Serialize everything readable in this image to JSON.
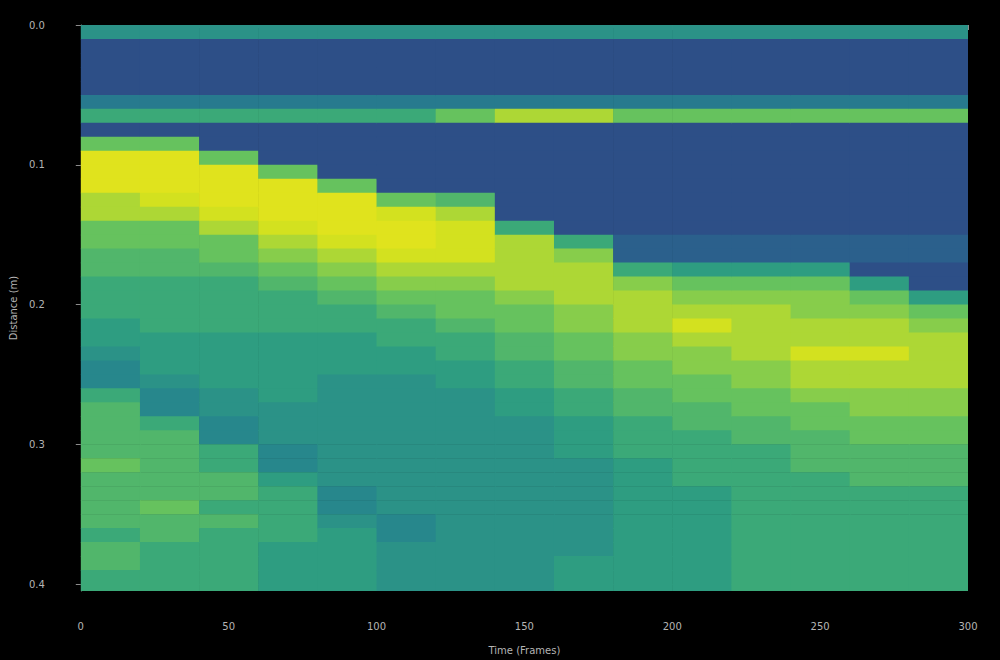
{
  "chart_data": {
    "type": "heatmap",
    "x_label": "Time (Frames)",
    "y_label": "Distance (m)",
    "xlim": [
      0,
      300
    ],
    "xticks": [
      0,
      50,
      100,
      150,
      200,
      250,
      300
    ],
    "ylim": [
      0,
      0.405
    ],
    "yticks": [
      {
        "value": 0,
        "label": "0.0"
      },
      0.1,
      0.2,
      0.3,
      0.4
    ],
    "grid": false,
    "zlim": [
      0,
      10
    ],
    "x_bins": [
      0,
      20,
      40,
      60,
      80,
      100,
      120,
      140,
      160,
      180,
      200,
      220,
      240,
      260,
      280,
      300
    ],
    "y_bins": [
      0,
      0.01,
      0.02,
      0.03,
      0.04,
      0.05,
      0.06,
      0.07,
      0.08,
      0.09,
      0.1,
      0.11,
      0.12,
      0.13,
      0.14,
      0.15,
      0.16,
      0.17,
      0.18,
      0.19,
      0.2,
      0.21,
      0.22,
      0.23,
      0.24,
      0.25,
      0.26,
      0.27,
      0.28,
      0.29,
      0.3,
      0.31,
      0.32,
      0.33,
      0.34,
      0.35,
      0.36,
      0.37,
      0.38,
      0.39,
      0.4,
      0.405
    ],
    "cells": [
      [
        5,
        2,
        2,
        2,
        2,
        4,
        6,
        2,
        7,
        9,
        9,
        9,
        8,
        8,
        7,
        7,
        6.5,
        6.5,
        6,
        6,
        6,
        5.5,
        5.5,
        5,
        4.5,
        4.5,
        6,
        6.5,
        6.5,
        6.5,
        6.5,
        7,
        6.5,
        6.5,
        6.5,
        6.5,
        6,
        6.5,
        6.5,
        6,
        6
      ],
      [
        5,
        2,
        2,
        2,
        2,
        4,
        6,
        2,
        7,
        9,
        9,
        9,
        8.5,
        8,
        7,
        7,
        6.5,
        6.5,
        6,
        6,
        6,
        6,
        5.5,
        5.5,
        5.5,
        5,
        4.5,
        4.5,
        6,
        6.5,
        6.5,
        6.5,
        6.5,
        6.5,
        7,
        6.5,
        6.5,
        6,
        6,
        6,
        6
      ],
      [
        5,
        2,
        2,
        2,
        2,
        4,
        6,
        2,
        2,
        7,
        9,
        9,
        9,
        8.5,
        8,
        7,
        7,
        6.5,
        6,
        6,
        6,
        6,
        5.5,
        5.5,
        5.5,
        5.5,
        5,
        5,
        4.5,
        4.5,
        6,
        6,
        6.5,
        6.5,
        6,
        6.5,
        6,
        6,
        6,
        6,
        6
      ],
      [
        5,
        2,
        2,
        2,
        2,
        4,
        6,
        2,
        2,
        2,
        7,
        9,
        9,
        9,
        8.5,
        8,
        7.5,
        7,
        6.5,
        6,
        6,
        6,
        5.5,
        5.5,
        5.5,
        5.5,
        5.5,
        5,
        5,
        5,
        4.5,
        4.5,
        5.5,
        6,
        6,
        6,
        6,
        5.5,
        5.5,
        5.5,
        5.5
      ],
      [
        5,
        2,
        2,
        2,
        2,
        4,
        6,
        2,
        2,
        2,
        2,
        7,
        9,
        9,
        9,
        8.5,
        8,
        7.5,
        7,
        6.5,
        6,
        6,
        5.5,
        5.5,
        5.5,
        5,
        5,
        5,
        5,
        5,
        5,
        5,
        5,
        4.5,
        4.5,
        5,
        5.5,
        5.5,
        5.5,
        5.5,
        5.5
      ],
      [
        5,
        2,
        2,
        2,
        2,
        4,
        6,
        2,
        2,
        2,
        2,
        2,
        7,
        8.5,
        9,
        9,
        8.5,
        8,
        7.5,
        7,
        6.5,
        6,
        6,
        5.5,
        5.5,
        5,
        5,
        5,
        5,
        5,
        5,
        5,
        5,
        5,
        5,
        4.5,
        4.5,
        5,
        5,
        5,
        5
      ],
      [
        5,
        2,
        2,
        2,
        2,
        4,
        7,
        2,
        2,
        2,
        2,
        2,
        6.5,
        8,
        8.5,
        8.5,
        8.5,
        8,
        7.5,
        7,
        7,
        6.5,
        6,
        6,
        5.5,
        5.5,
        5,
        5,
        5,
        5,
        5,
        5,
        5,
        5,
        5,
        5,
        5,
        5,
        5,
        5,
        5
      ],
      [
        5,
        2,
        2,
        2,
        2,
        4,
        8,
        2,
        2,
        2,
        2,
        2,
        2,
        2,
        6,
        8,
        8,
        8,
        8,
        7.5,
        7,
        7,
        6.5,
        6.5,
        6,
        6,
        5.5,
        5.5,
        5,
        5,
        5,
        5,
        5,
        5,
        5,
        5,
        5,
        5,
        5,
        5,
        5
      ],
      [
        5,
        2,
        2,
        2,
        2,
        4,
        8,
        2,
        2,
        2,
        2,
        2,
        2,
        2,
        2,
        6,
        7.5,
        8,
        8,
        8,
        7.5,
        7.5,
        7,
        7,
        6.5,
        6.5,
        6,
        6,
        5.5,
        5.5,
        5.5,
        5,
        5,
        5,
        5,
        5,
        5,
        5,
        5.5,
        5.5,
        5.5
      ],
      [
        5,
        2,
        2,
        2,
        2,
        4,
        7,
        2,
        2,
        2,
        2,
        2,
        2,
        2,
        2,
        3,
        3,
        6,
        7.5,
        8,
        8,
        8,
        7.5,
        7.5,
        7,
        7,
        6.5,
        6.5,
        6,
        6,
        6,
        5.5,
        5.5,
        5.5,
        5.5,
        5.5,
        5.5,
        5.5,
        5.5,
        5.5,
        5.5
      ],
      [
        5,
        2,
        2,
        2,
        2,
        4,
        7,
        2,
        2,
        2,
        2,
        2,
        2,
        2,
        2,
        3,
        3,
        5.5,
        7,
        7.5,
        8,
        8.5,
        8,
        7.5,
        7.5,
        7,
        7,
        6.5,
        6.5,
        6,
        6,
        6,
        6,
        5.5,
        5.5,
        5.5,
        5.5,
        5.5,
        5.5,
        5.5,
        5.5
      ],
      [
        5,
        2,
        2,
        2,
        2,
        4,
        7,
        2,
        2,
        2,
        2,
        2,
        2,
        2,
        2,
        3,
        3,
        5.5,
        7,
        7.5,
        8,
        8,
        8,
        8,
        7.5,
        7.5,
        7,
        7,
        6.5,
        6.5,
        6,
        6,
        6,
        6,
        6,
        6,
        6,
        6,
        6,
        6,
        6
      ],
      [
        5,
        2,
        2,
        2,
        2,
        4,
        7,
        2,
        2,
        2,
        2,
        2,
        2,
        2,
        2,
        3,
        3,
        5.5,
        7,
        7.5,
        7.5,
        8,
        8,
        8.5,
        8,
        8,
        7.5,
        7,
        7,
        6.5,
        6.5,
        6.5,
        6,
        6,
        6,
        6,
        6,
        6,
        6,
        6,
        6
      ],
      [
        5,
        2,
        2,
        2,
        2,
        4,
        7,
        2,
        2,
        2,
        2,
        2,
        2,
        2,
        2,
        3,
        3,
        2,
        5.5,
        7,
        7.5,
        8,
        8,
        8.5,
        8,
        8,
        7.5,
        7.5,
        7,
        7,
        6.5,
        6.5,
        6.5,
        6,
        6,
        6,
        6,
        6,
        6,
        6,
        6
      ],
      [
        5,
        2,
        2,
        2,
        2,
        4,
        7,
        2,
        2,
        2,
        2,
        2,
        2,
        2,
        2,
        3,
        3,
        2,
        2,
        5.5,
        7,
        7.5,
        8,
        8,
        8,
        8,
        7.5,
        7.5,
        7,
        7,
        6.5,
        6.5,
        6.5,
        6,
        6,
        6,
        6,
        6,
        6,
        6,
        6
      ]
    ]
  }
}
